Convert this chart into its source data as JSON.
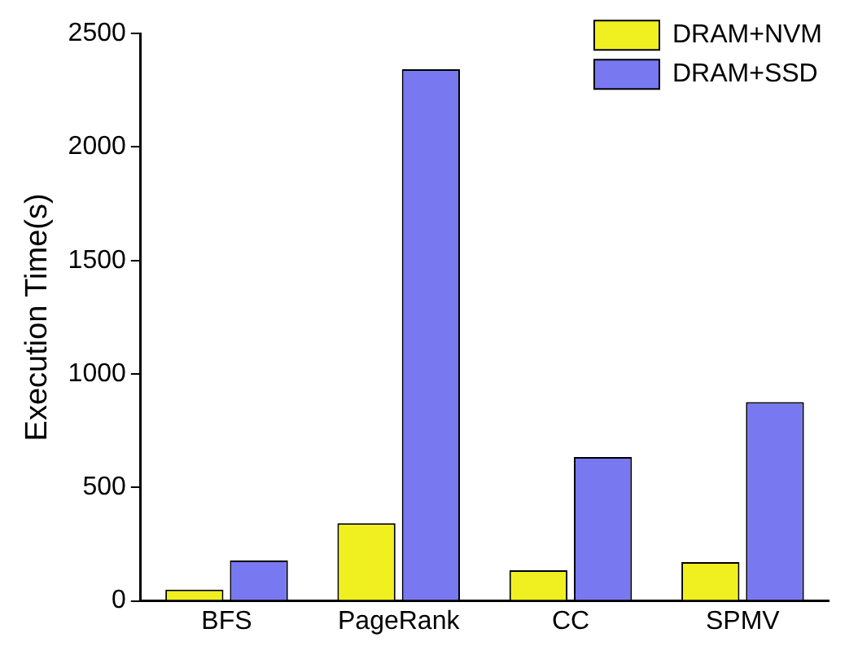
{
  "chart_data": {
    "type": "bar",
    "ylabel": "Execution Time(s)",
    "categories": [
      "BFS",
      "PageRank",
      "CC",
      "SPMV"
    ],
    "series": [
      {
        "name": "DRAM+NVM",
        "color": "#f0f020",
        "values": [
          50,
          342,
          135,
          171
        ]
      },
      {
        "name": "DRAM+SSD",
        "color": "#7878f0",
        "values": [
          178,
          2343,
          634,
          876
        ]
      }
    ],
    "ylim": [
      0,
      2500
    ],
    "yticks": [
      0,
      500,
      1000,
      1500,
      2000,
      2500
    ],
    "grid": false,
    "legend": "top right"
  }
}
